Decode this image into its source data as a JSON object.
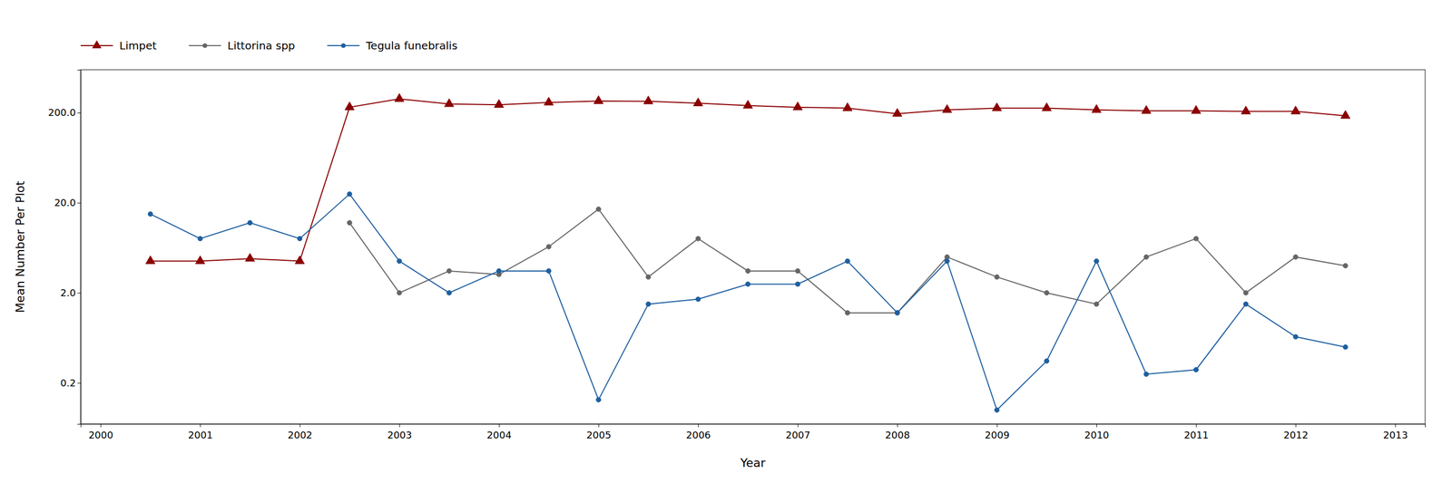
{
  "chart_data": {
    "type": "line",
    "x_label": "Year",
    "y_label": "Mean Number Per Plot",
    "log": "y",
    "grid": false,
    "legend": "top",
    "x": [
      2000.5,
      2001.0,
      2001.5,
      2002.0,
      2002.5,
      2003.0,
      2003.5,
      2004.0,
      2004.5,
      2005.0,
      2005.5,
      2006.0,
      2006.5,
      2007.0,
      2007.5,
      2008.0,
      2008.5,
      2009.0,
      2009.5,
      2010.0,
      2010.5,
      2011.0,
      2011.5,
      2012.0,
      2012.5
    ],
    "series": [
      {
        "name": "Limpet",
        "color": "#8B0000",
        "marker": "triangle",
        "values": [
          4.5,
          4.5,
          4.8,
          4.5,
          230,
          285,
          250,
          245,
          260,
          270,
          268,
          255,
          240,
          230,
          225,
          195,
          215,
          225,
          225,
          215,
          210,
          210,
          207,
          207,
          185
        ]
      },
      {
        "name": "Littorina spp",
        "color": "#666666",
        "marker": "circle",
        "values": [
          null,
          null,
          null,
          null,
          12.0,
          2.0,
          3.5,
          3.2,
          6.5,
          17.0,
          3.0,
          8.0,
          3.5,
          3.5,
          1.2,
          1.2,
          5.0,
          3.0,
          2.0,
          1.5,
          5.0,
          8.0,
          2.0,
          5.0,
          4.0
        ]
      },
      {
        "name": "Tegula funebralis",
        "color": "#1E5FA0",
        "marker": "circle",
        "values": [
          15.0,
          8.0,
          12.0,
          8.0,
          25.0,
          4.5,
          2.0,
          3.5,
          3.5,
          0.13,
          1.5,
          1.7,
          2.5,
          2.5,
          4.5,
          1.2,
          4.5,
          0.1,
          0.35,
          4.5,
          0.25,
          0.28,
          1.5,
          0.65,
          0.5
        ]
      }
    ],
    "xlim": [
      1999.8,
      2013.3
    ],
    "xticks": [
      2000,
      2001,
      2002,
      2003,
      2004,
      2005,
      2006,
      2007,
      2008,
      2009,
      2010,
      2011,
      2012,
      2013
    ],
    "ylim": [
      0.07,
      600
    ],
    "yticks": [
      0.2,
      {
        "value": 2.0,
        "label": "2.0"
      },
      {
        "value": 20.0,
        "label": "20.0"
      },
      {
        "value": 200.0,
        "label": "200.0"
      }
    ]
  }
}
